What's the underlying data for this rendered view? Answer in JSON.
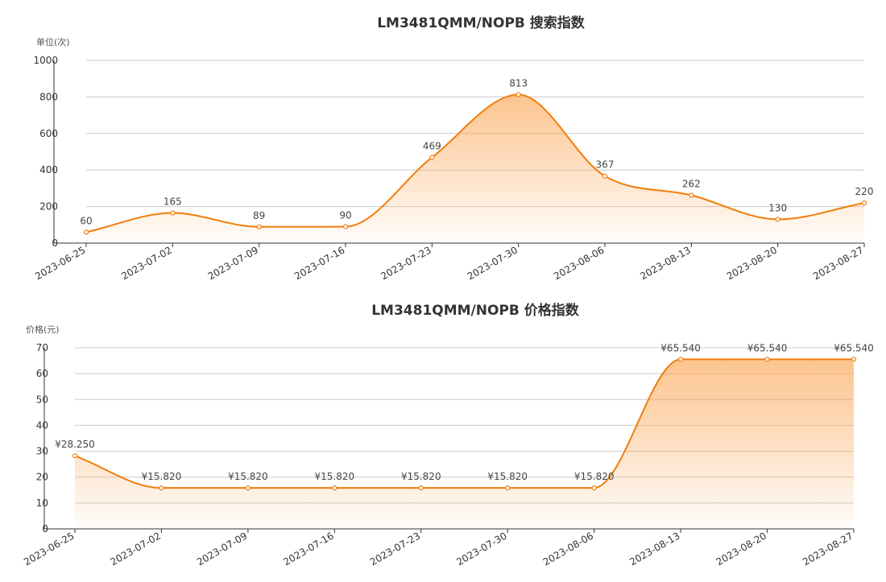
{
  "chart_data": [
    {
      "type": "area",
      "title": "LM3481QMM/NOPB 搜索指数",
      "ylabel": "单位(次)",
      "categories": [
        "2023-06-25",
        "2023-07-02",
        "2023-07-09",
        "2023-07-16",
        "2023-07-23",
        "2023-07-30",
        "2023-08-06",
        "2023-08-13",
        "2023-08-20",
        "2023-08-27"
      ],
      "values": [
        60,
        165,
        89,
        90,
        469,
        813,
        367,
        262,
        130,
        220
      ],
      "value_labels": [
        "60",
        "165",
        "89",
        "90",
        "469",
        "813",
        "367",
        "262",
        "130",
        "220"
      ],
      "yticks": [
        "0",
        "200",
        "400",
        "600",
        "800",
        "1000"
      ],
      "ylim": [
        0,
        1000
      ],
      "grid": true,
      "color": "#f07d0c"
    },
    {
      "type": "area",
      "title": "LM3481QMM/NOPB 价格指数",
      "ylabel": "价格(元)",
      "categories": [
        "2023-06-25",
        "2023-07-02",
        "2023-07-09",
        "2023-07-16",
        "2023-07-23",
        "2023-07-30",
        "2023-08-06",
        "2023-08-13",
        "2023-08-20",
        "2023-08-27"
      ],
      "values": [
        28.25,
        15.82,
        15.82,
        15.82,
        15.82,
        15.82,
        15.82,
        65.54,
        65.54,
        65.54
      ],
      "value_labels": [
        "¥28.250",
        "¥15.820",
        "¥15.820",
        "¥15.820",
        "¥15.820",
        "¥15.820",
        "¥15.820",
        "¥65.540",
        "¥65.540",
        "¥65.540"
      ],
      "yticks": [
        "0",
        "10",
        "20",
        "30",
        "40",
        "50",
        "60",
        "70"
      ],
      "ylim": [
        0,
        70
      ],
      "grid": true,
      "color": "#f07d0c"
    }
  ]
}
